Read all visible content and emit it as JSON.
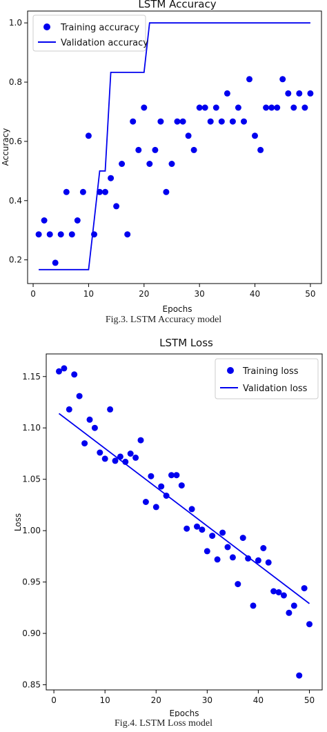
{
  "figures": {
    "fig3_caption": "Fig.3. LSTM Accuracy model",
    "fig4_caption": "Fig.4. LSTM Loss model"
  },
  "chart_data": [
    {
      "type": "scatter",
      "title": "LSTM Accuracy",
      "xlabel": "Epochs",
      "ylabel": "Accuracy",
      "xlim": [
        -1,
        52
      ],
      "ylim": [
        0.12,
        1.04
      ],
      "xticks": [
        0,
        10,
        20,
        30,
        40,
        50
      ],
      "yticks": [
        0.2,
        0.4,
        0.6,
        0.8,
        1.0
      ],
      "ytick_labels": [
        "0.2",
        "0.4",
        "0.6",
        "0.8",
        "1.0"
      ],
      "grid": false,
      "legend_position": "top-left",
      "color": "#0000ee",
      "series": [
        {
          "name": "Training accuracy",
          "kind": "points",
          "x": [
            1,
            2,
            3,
            4,
            5,
            6,
            7,
            8,
            9,
            10,
            11,
            12,
            13,
            14,
            15,
            16,
            17,
            18,
            19,
            20,
            21,
            22,
            23,
            24,
            25,
            26,
            27,
            28,
            29,
            30,
            31,
            32,
            33,
            34,
            35,
            36,
            37,
            38,
            39,
            40,
            41,
            42,
            43,
            44,
            45,
            46,
            47,
            48,
            49,
            50
          ],
          "y": [
            0.286,
            0.333,
            0.286,
            0.19,
            0.286,
            0.429,
            0.286,
            0.333,
            0.429,
            0.619,
            0.286,
            0.429,
            0.429,
            0.476,
            0.381,
            0.524,
            0.286,
            0.667,
            0.571,
            0.714,
            0.524,
            0.571,
            0.667,
            0.429,
            0.524,
            0.667,
            0.667,
            0.619,
            0.571,
            0.714,
            0.714,
            0.667,
            0.714,
            0.667,
            0.762,
            0.667,
            0.714,
            0.667,
            0.81,
            0.619,
            0.571,
            0.714,
            0.714,
            0.714,
            0.81,
            0.762,
            0.714,
            0.762,
            0.714,
            0.762
          ]
        },
        {
          "name": "Validation accuracy",
          "kind": "line",
          "x": [
            1,
            2,
            3,
            4,
            5,
            6,
            7,
            8,
            9,
            10,
            11,
            12,
            13,
            14,
            15,
            16,
            17,
            18,
            19,
            20,
            21,
            22,
            23,
            24,
            25,
            26,
            27,
            28,
            29,
            30,
            31,
            32,
            33,
            34,
            35,
            36,
            37,
            38,
            39,
            40,
            41,
            42,
            43,
            44,
            45,
            46,
            47,
            48,
            49,
            50
          ],
          "y": [
            0.167,
            0.167,
            0.167,
            0.167,
            0.167,
            0.167,
            0.167,
            0.167,
            0.167,
            0.167,
            0.333,
            0.5,
            0.5,
            0.833,
            0.833,
            0.833,
            0.833,
            0.833,
            0.833,
            0.833,
            1.0,
            1.0,
            1.0,
            1.0,
            1.0,
            1.0,
            1.0,
            1.0,
            1.0,
            1.0,
            1.0,
            1.0,
            1.0,
            1.0,
            1.0,
            1.0,
            1.0,
            1.0,
            1.0,
            1.0,
            1.0,
            1.0,
            1.0,
            1.0,
            1.0,
            1.0,
            1.0,
            1.0,
            1.0,
            1.0
          ]
        }
      ]
    },
    {
      "type": "scatter",
      "title": "LSTM Loss",
      "xlabel": "Epochs",
      "ylabel": "Loss",
      "xlim": [
        -1.5,
        52.5
      ],
      "ylim": [
        0.845,
        1.172
      ],
      "xticks": [
        0,
        10,
        20,
        30,
        40,
        50
      ],
      "yticks": [
        0.85,
        0.9,
        0.95,
        1.0,
        1.05,
        1.1,
        1.15
      ],
      "ytick_labels": [
        "0.85",
        "0.90",
        "0.95",
        "1.00",
        "1.05",
        "1.10",
        "1.15"
      ],
      "grid": false,
      "legend_position": "top-right",
      "color": "#0000ee",
      "series": [
        {
          "name": "Training loss",
          "kind": "points",
          "x": [
            1,
            2,
            3,
            4,
            5,
            6,
            7,
            8,
            9,
            10,
            11,
            12,
            13,
            14,
            15,
            16,
            17,
            18,
            19,
            20,
            21,
            22,
            23,
            24,
            25,
            26,
            27,
            28,
            29,
            30,
            31,
            32,
            33,
            34,
            35,
            36,
            37,
            38,
            39,
            40,
            41,
            42,
            43,
            44,
            45,
            46,
            47,
            48,
            49,
            50
          ],
          "y": [
            1.155,
            1.158,
            1.118,
            1.152,
            1.131,
            1.085,
            1.108,
            1.1,
            1.076,
            1.07,
            1.118,
            1.068,
            1.072,
            1.067,
            1.075,
            1.071,
            1.088,
            1.028,
            1.053,
            1.023,
            1.043,
            1.034,
            1.054,
            1.054,
            1.044,
            1.002,
            1.021,
            1.004,
            1.001,
            0.98,
            0.995,
            0.972,
            0.998,
            0.984,
            0.974,
            0.948,
            0.993,
            0.973,
            0.927,
            0.971,
            0.983,
            0.969,
            0.941,
            0.94,
            0.937,
            0.92,
            0.927,
            0.859,
            0.944,
            0.909
          ]
        },
        {
          "name": "Validation loss",
          "kind": "line",
          "x": [
            1,
            50
          ],
          "y": [
            1.114,
            0.929
          ]
        }
      ]
    }
  ]
}
